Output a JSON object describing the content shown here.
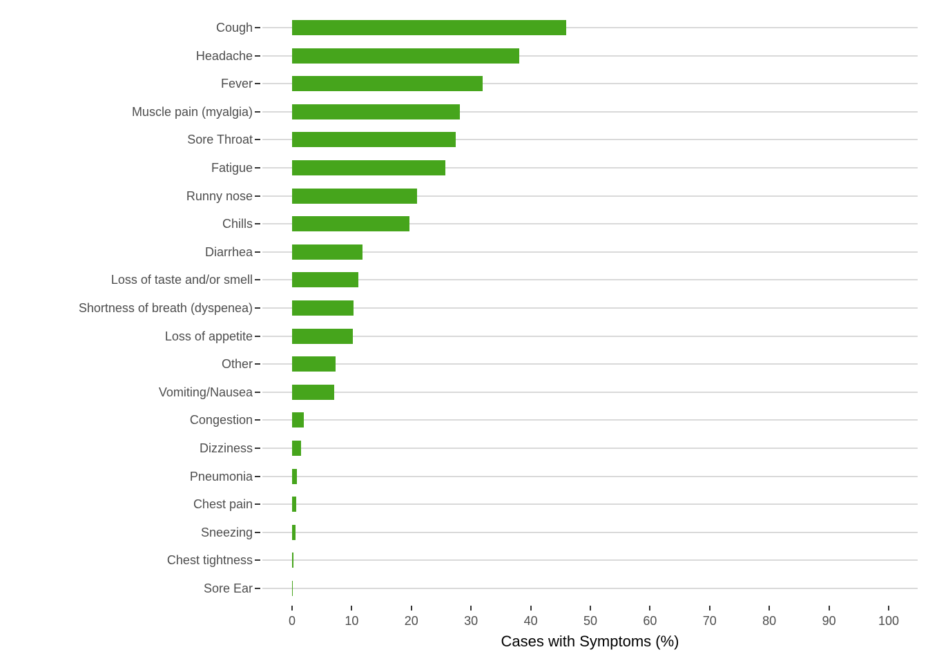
{
  "chart_data": {
    "type": "bar",
    "orientation": "horizontal",
    "title": "",
    "xlabel": "Cases with Symptoms (%)",
    "ylabel": "",
    "categories": [
      "Cough",
      "Headache",
      "Fever",
      "Muscle pain (myalgia)",
      "Sore Throat",
      "Fatigue",
      "Runny nose",
      "Chills",
      "Diarrhea",
      "Loss of taste and/or smell",
      "Shortness of breath (dyspenea)",
      "Loss of appetite",
      "Other",
      "Vomiting/Nausea",
      "Congestion",
      "Dizziness",
      "Pneumonia",
      "Chest pain",
      "Sneezing",
      "Chest tightness",
      "Sore Ear"
    ],
    "values": [
      46.0,
      38.1,
      31.9,
      28.1,
      27.4,
      25.7,
      20.9,
      19.7,
      11.8,
      11.1,
      10.3,
      10.2,
      7.3,
      7.1,
      2.0,
      1.5,
      0.8,
      0.7,
      0.6,
      0.25,
      0.15
    ],
    "xlim": [
      0,
      100
    ],
    "xticks": [
      0,
      10,
      20,
      30,
      40,
      50,
      60,
      70,
      80,
      90,
      100
    ],
    "grid": "horizontal-major-only",
    "legend": "none",
    "colors": {
      "bar": "#46A51C",
      "gridline": "#D9D9D9",
      "axis_text": "#4D4D4D",
      "tick_mark": "#333333",
      "axis_title": "#000000",
      "background": "#FFFFFF"
    }
  }
}
